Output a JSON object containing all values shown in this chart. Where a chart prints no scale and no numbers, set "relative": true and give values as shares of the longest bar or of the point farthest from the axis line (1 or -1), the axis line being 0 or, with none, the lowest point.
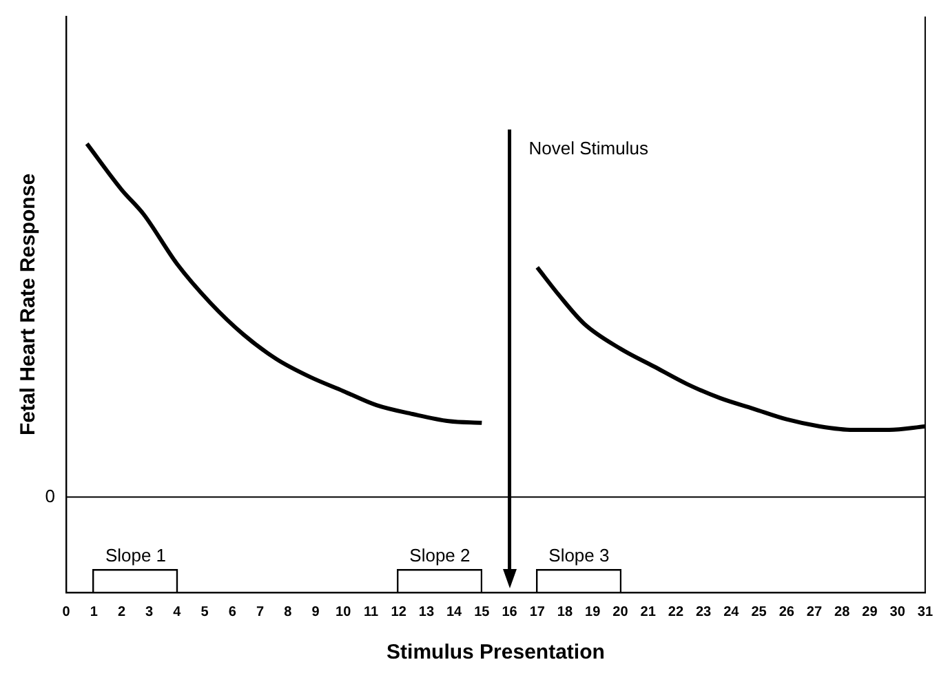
{
  "chart_data": {
    "type": "line",
    "relative": true,
    "xlabel": "Stimulus Presentation",
    "ylabel": "Fetal Heart Rate Response",
    "xlim": [
      0,
      31
    ],
    "xticks": [
      0,
      1,
      2,
      3,
      4,
      5,
      6,
      7,
      8,
      9,
      10,
      11,
      12,
      13,
      14,
      15,
      16,
      17,
      18,
      19,
      20,
      21,
      22,
      23,
      24,
      25,
      26,
      27,
      28,
      29,
      30,
      31
    ],
    "series": [
      {
        "color": "#000000",
        "x": [
          0.75,
          2,
          2.8,
          4,
          5.2,
          6.4,
          7.6,
          8.8,
          10,
          11.2,
          12.5,
          13.8,
          15
        ],
        "values": [
          1,
          0.87,
          0.8,
          0.66,
          0.55,
          0.46,
          0.39,
          0.34,
          0.3,
          0.26,
          0.235,
          0.215,
          0.21
        ]
      },
      {
        "color": "#000000",
        "x": [
          17,
          17.8,
          18.7,
          20,
          21.2,
          22.4,
          23.6,
          24.8,
          26,
          27.2,
          28.4,
          29.7,
          31
        ],
        "values": [
          0.65,
          0.57,
          0.49,
          0.42,
          0.37,
          0.32,
          0.28,
          0.25,
          0.22,
          0.2,
          0.19,
          0.19,
          0.2
        ]
      }
    ],
    "ref_lines": [
      {
        "axis": "y",
        "value": 0,
        "label": "0"
      },
      {
        "axis": "x",
        "value": 16,
        "label": "Novel Stimulus"
      }
    ],
    "annotations": [
      "Slope 1",
      "Slope 2",
      "Slope 3"
    ],
    "grid": false,
    "legend": false,
    "marker": "none",
    "line_style": "solid"
  }
}
